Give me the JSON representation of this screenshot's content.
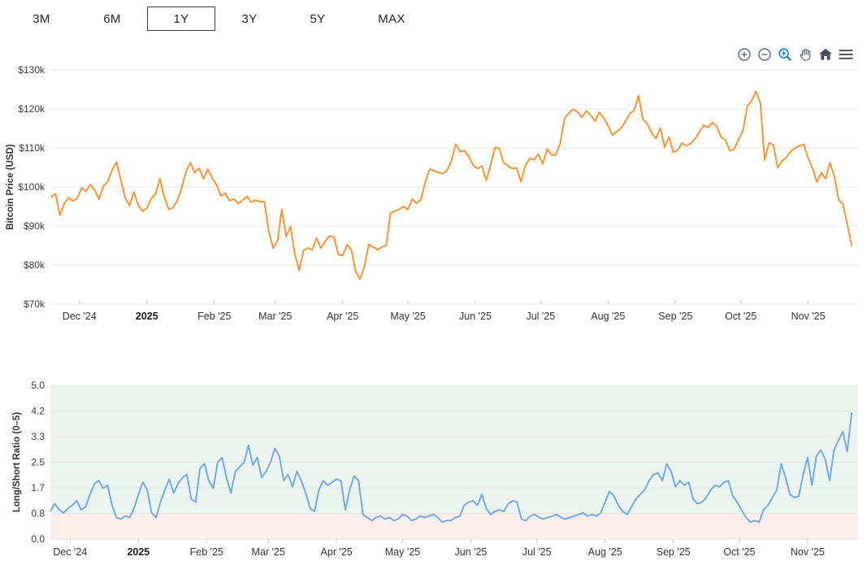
{
  "time_ranges": {
    "items": [
      {
        "label": "3M",
        "selected": false
      },
      {
        "label": "6M",
        "selected": false
      },
      {
        "label": "1Y",
        "selected": true
      },
      {
        "label": "3Y",
        "selected": false
      },
      {
        "label": "5Y",
        "selected": false
      },
      {
        "label": "MAX",
        "selected": false
      }
    ]
  },
  "chart_toolbar": {
    "icons": [
      "zoom-in",
      "zoom-out",
      "zoom-box",
      "pan",
      "reset-home",
      "menu"
    ],
    "active_icon": "zoom-box"
  },
  "colors": {
    "btc_line": "#f5953c",
    "ratio_line": "#72abe3",
    "band_above": "#ecf4ef",
    "band_below": "#fdeeec",
    "grid": "#e4e4e4",
    "tick": "#c8c8c8",
    "toolbar_gray": "#5b6a79",
    "toolbar_dark": "#454f5b",
    "toolbar_blue": "#1e7ad1"
  },
  "chart_data": [
    {
      "type": "line",
      "name": "bitcoin-price",
      "ylabel": "Bitcoin Price (USD)",
      "color": "#f5953c",
      "ylim": [
        70,
        130
      ],
      "unit": "USD thousands",
      "yticks": [
        {
          "v": 70,
          "label": "$70k"
        },
        {
          "v": 80,
          "label": "$80k"
        },
        {
          "v": 90,
          "label": "$90k"
        },
        {
          "v": 100,
          "label": "$100k"
        },
        {
          "v": 110,
          "label": "$110k"
        },
        {
          "v": 120,
          "label": "$120k"
        },
        {
          "v": 130,
          "label": "$130k"
        }
      ],
      "xticks": [
        {
          "day": 13,
          "label": "Dec '24"
        },
        {
          "day": 44,
          "label": "2025",
          "bold": true
        },
        {
          "day": 75,
          "label": "Feb '25"
        },
        {
          "day": 103,
          "label": "Mar '25"
        },
        {
          "day": 134,
          "label": "Apr '25"
        },
        {
          "day": 164,
          "label": "May '25"
        },
        {
          "day": 195,
          "label": "Jun '25"
        },
        {
          "day": 225,
          "label": "Jul '25"
        },
        {
          "day": 256,
          "label": "Aug '25"
        },
        {
          "day": 287,
          "label": "Sep '25"
        },
        {
          "day": 317,
          "label": "Oct '25"
        },
        {
          "day": 348,
          "label": "Nov '25"
        }
      ],
      "x_day_start": 0,
      "x_day_step": 2,
      "values": [
        97.5,
        98.2,
        92.8,
        95.7,
        97.2,
        96.4,
        97.1,
        99.8,
        98.9,
        100.6,
        99.2,
        96.9,
        100.2,
        101.4,
        104.3,
        106.4,
        101.8,
        97.3,
        95.2,
        98.7,
        95.4,
        93.8,
        94.6,
        97.0,
        98.2,
        102.1,
        97.4,
        94.3,
        94.7,
        96.5,
        99.8,
        104.0,
        106.2,
        103.7,
        104.8,
        102.1,
        104.6,
        102.4,
        100.6,
        97.7,
        98.4,
        96.5,
        96.9,
        95.8,
        96.6,
        97.6,
        96.1,
        96.6,
        96.2,
        96.3,
        88.7,
        84.3,
        86.1,
        94.2,
        87.3,
        89.9,
        82.8,
        78.6,
        83.7,
        84.4,
        83.9,
        86.9,
        84.3,
        86.1,
        87.5,
        87.1,
        82.7,
        82.4,
        85.2,
        83.9,
        78.3,
        76.4,
        79.7,
        85.3,
        84.6,
        83.9,
        84.6,
        85.1,
        93.4,
        93.8,
        94.3,
        95.0,
        94.2,
        96.9,
        95.8,
        96.8,
        101.3,
        104.6,
        104.2,
        103.7,
        103.4,
        104.2,
        106.8,
        111.0,
        109.0,
        109.3,
        107.8,
        105.6,
        104.7,
        105.4,
        101.7,
        105.6,
        110.1,
        109.9,
        106.2,
        105.4,
        104.7,
        104.9,
        101.3,
        105.5,
        107.3,
        107.0,
        108.4,
        105.9,
        109.7,
        108.2,
        108.3,
        111.2,
        117.6,
        119.0,
        119.9,
        119.2,
        117.9,
        119.5,
        118.4,
        116.9,
        119.1,
        117.7,
        115.7,
        113.3,
        114.2,
        115.1,
        116.8,
        118.8,
        119.6,
        123.4,
        117.5,
        116.2,
        114.0,
        112.4,
        115.1,
        110.2,
        112.8,
        108.9,
        109.4,
        111.3,
        110.6,
        111.1,
        112.4,
        114.1,
        115.8,
        115.3,
        116.5,
        115.6,
        112.7,
        112.1,
        109.3,
        109.7,
        112.2,
        114.4,
        120.6,
        122.1,
        124.5,
        121.6,
        106.9,
        111.4,
        110.7,
        104.9,
        106.7,
        107.6,
        109.1,
        110.0,
        110.6,
        110.9,
        107.4,
        104.8,
        101.3,
        103.6,
        102.1,
        106.2,
        102.8,
        96.8,
        95.6,
        90.4,
        85.1
      ]
    },
    {
      "type": "line",
      "name": "long-short-ratio",
      "ylabel": "Long/Short Ratio (0–5)",
      "color": "#72abe3",
      "ylim": [
        0,
        5
      ],
      "yticks": [
        {
          "v": 0,
          "label": "0.0"
        },
        {
          "v": 0.8333,
          "label": "0.8"
        },
        {
          "v": 1.6667,
          "label": "1.7"
        },
        {
          "v": 2.5,
          "label": "2.5"
        },
        {
          "v": 3.3333,
          "label": "3.3"
        },
        {
          "v": 4.1667,
          "label": "4.2"
        },
        {
          "v": 5,
          "label": "5.0"
        }
      ],
      "bands": [
        {
          "from": 0.8333,
          "to": 5,
          "color": "#ecf4ef",
          "meaning": "above-threshold"
        },
        {
          "from": 0,
          "to": 0.8333,
          "color": "#fdeeec",
          "meaning": "below-threshold"
        }
      ],
      "xticks": [
        {
          "day": 13,
          "label": "Dec '24"
        },
        {
          "day": 44,
          "label": "2025",
          "bold": true
        },
        {
          "day": 75,
          "label": "Feb '25"
        },
        {
          "day": 103,
          "label": "Mar '25"
        },
        {
          "day": 134,
          "label": "Apr '25"
        },
        {
          "day": 164,
          "label": "May '25"
        },
        {
          "day": 195,
          "label": "Jun '25"
        },
        {
          "day": 225,
          "label": "Jul '25"
        },
        {
          "day": 256,
          "label": "Aug '25"
        },
        {
          "day": 287,
          "label": "Sep '25"
        },
        {
          "day": 317,
          "label": "Oct '25"
        },
        {
          "day": 348,
          "label": "Nov '25"
        }
      ],
      "x_day_start": 0,
      "x_day_step": 2,
      "values": [
        0.85,
        1.4,
        0.9,
        1.15,
        0.95,
        0.85,
        1.0,
        1.1,
        1.25,
        0.95,
        1.05,
        1.45,
        1.8,
        1.9,
        1.65,
        1.75,
        1.1,
        0.7,
        0.65,
        0.75,
        0.7,
        1.0,
        1.45,
        1.85,
        1.6,
        0.85,
        0.7,
        1.2,
        1.6,
        1.95,
        1.5,
        1.8,
        2.0,
        2.1,
        1.3,
        1.2,
        2.3,
        2.45,
        1.9,
        1.65,
        2.5,
        2.65,
        2.0,
        1.5,
        2.2,
        2.35,
        2.5,
        3.05,
        2.4,
        2.65,
        2.0,
        2.2,
        2.5,
        2.95,
        2.7,
        1.9,
        2.1,
        1.7,
        2.2,
        1.9,
        1.5,
        1.0,
        0.9,
        1.6,
        1.9,
        1.75,
        1.85,
        1.95,
        1.9,
        0.95,
        1.6,
        2.05,
        1.9,
        0.8,
        0.7,
        0.6,
        0.7,
        0.75,
        0.65,
        0.7,
        0.6,
        0.65,
        0.8,
        0.75,
        0.6,
        0.65,
        0.75,
        0.7,
        0.75,
        0.8,
        0.7,
        0.55,
        0.6,
        0.6,
        0.7,
        0.75,
        1.1,
        1.2,
        1.25,
        1.1,
        1.45,
        1.0,
        0.8,
        0.9,
        0.95,
        0.9,
        1.15,
        1.25,
        1.2,
        0.65,
        0.6,
        0.75,
        0.8,
        0.7,
        0.65,
        0.7,
        0.75,
        0.8,
        0.7,
        0.65,
        0.7,
        0.75,
        0.8,
        0.85,
        0.75,
        0.8,
        0.75,
        0.85,
        1.2,
        1.55,
        1.4,
        1.1,
        0.9,
        0.8,
        1.05,
        1.3,
        1.45,
        1.6,
        1.9,
        2.1,
        2.15,
        1.9,
        2.45,
        2.2,
        1.7,
        1.9,
        1.75,
        1.85,
        1.3,
        1.15,
        1.2,
        1.35,
        1.6,
        1.75,
        1.7,
        1.85,
        1.9,
        1.4,
        1.2,
        0.95,
        0.7,
        0.55,
        0.6,
        0.55,
        0.95,
        1.1,
        1.35,
        1.6,
        2.45,
        2.0,
        1.45,
        1.35,
        1.4,
        2.1,
        2.65,
        1.75,
        2.7,
        2.9,
        2.6,
        1.9,
        2.9,
        3.2,
        3.5,
        2.85,
        4.1
      ]
    }
  ]
}
